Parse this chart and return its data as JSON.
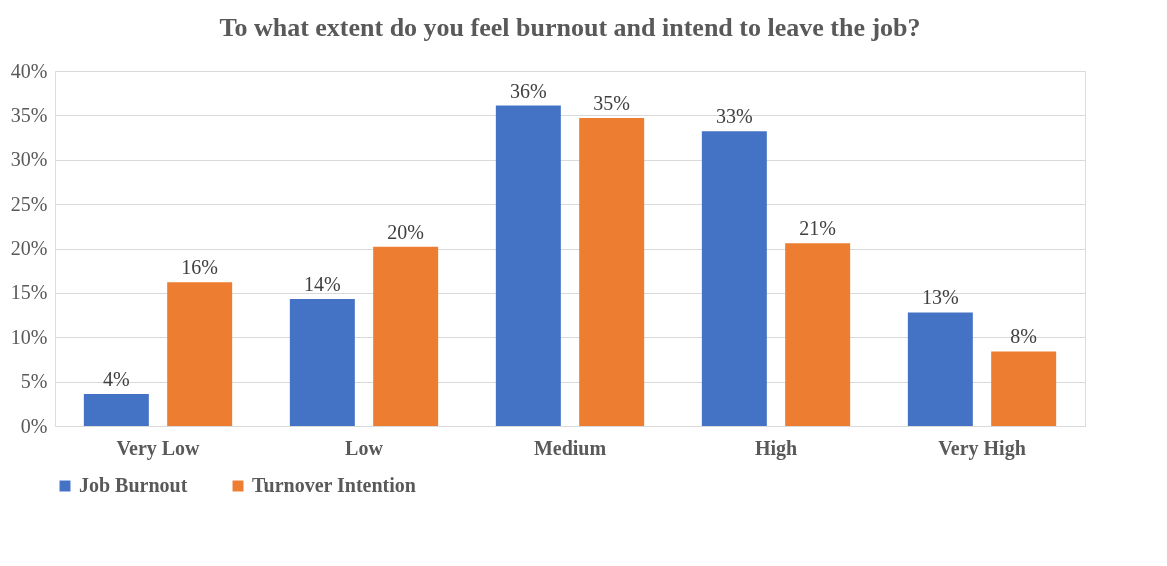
{
  "chart_data": {
    "type": "bar",
    "title": "To what extent do you feel burnout and intend to leave the job?",
    "categories": [
      "Very Low",
      "Low",
      "Medium",
      "High",
      "Very High"
    ],
    "series": [
      {
        "name": "Job Burnout",
        "color": "#4472c4",
        "values": [
          3.6,
          14.3,
          36.1,
          33.2,
          12.8
        ],
        "value_labels": [
          "4%",
          "14%",
          "36%",
          "33%",
          "13%"
        ]
      },
      {
        "name": "Turnover Intention",
        "color": "#ed7d31",
        "values": [
          16.2,
          20.2,
          34.7,
          20.6,
          8.4
        ],
        "value_labels": [
          "16%",
          "20%",
          "35%",
          "21%",
          "8%"
        ]
      }
    ],
    "ylim": [
      0,
      40
    ],
    "yticks": [
      {
        "value": 0,
        "label": "0%"
      },
      {
        "value": 5,
        "label": "5%"
      },
      {
        "value": 10,
        "label": "10%"
      },
      {
        "value": 15,
        "label": "15%"
      },
      {
        "value": 20,
        "label": "20%"
      },
      {
        "value": 25,
        "label": "25%"
      },
      {
        "value": 30,
        "label": "30%"
      },
      {
        "value": 35,
        "label": "35%"
      },
      {
        "value": 40,
        "label": "40%"
      }
    ],
    "grid": "y",
    "legend": "bottom"
  }
}
